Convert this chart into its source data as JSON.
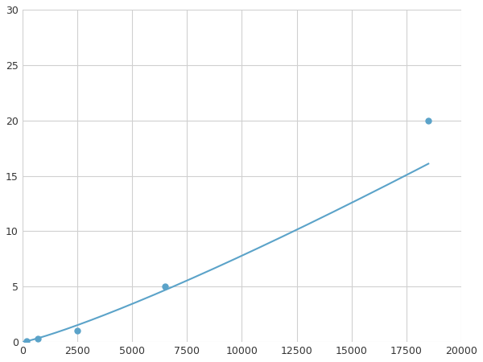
{
  "x_points": [
    200,
    700,
    2500,
    6500,
    18500
  ],
  "y_points": [
    0.1,
    0.3,
    1.0,
    5.0,
    20.0
  ],
  "line_color": "#5ba3c9",
  "marker_color": "#5ba3c9",
  "marker_size": 5,
  "line_width": 1.5,
  "xlim": [
    0,
    20000
  ],
  "ylim": [
    0,
    30
  ],
  "xticks": [
    0,
    2500,
    5000,
    7500,
    10000,
    12500,
    15000,
    17500,
    20000
  ],
  "yticks": [
    0,
    5,
    10,
    15,
    20,
    25,
    30
  ],
  "grid_color": "#d0d0d0",
  "background_color": "#ffffff",
  "figure_background": "#ffffff"
}
